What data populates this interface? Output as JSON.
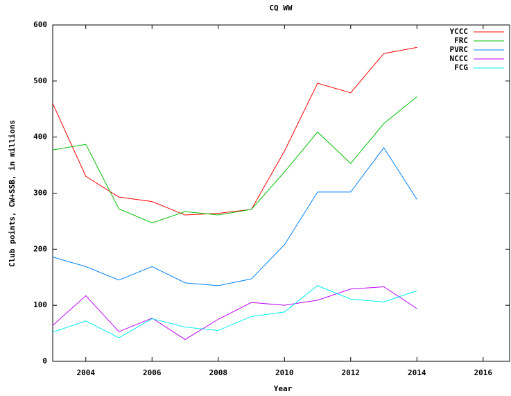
{
  "chart_data": {
    "type": "line",
    "title": "CQ WW",
    "x_label": "Year",
    "y_label": "Club points, CW+SSB, in millions",
    "x": [
      2003,
      2004,
      2005,
      2006,
      2007,
      2008,
      2009,
      2010,
      2011,
      2012,
      2013,
      2014
    ],
    "series": [
      {
        "name": "YCCC",
        "color": "#ff0000",
        "values": [
          460,
          330,
          293,
          285,
          261,
          264,
          271,
          375,
          496,
          479,
          549,
          560
        ]
      },
      {
        "name": "FRC",
        "color": "#00c000",
        "values": [
          377,
          387,
          272,
          247,
          267,
          261,
          271,
          338,
          409,
          353,
          424,
          472
        ]
      },
      {
        "name": "PVRC",
        "color": "#0080ff",
        "values": [
          186,
          169,
          145,
          169,
          140,
          135,
          147,
          208,
          302,
          302,
          381,
          289
        ]
      },
      {
        "name": "NCCC",
        "color": "#c000ff",
        "values": [
          64,
          117,
          53,
          77,
          39,
          75,
          105,
          100,
          109,
          129,
          133,
          94
        ]
      },
      {
        "name": "FCG",
        "color": "#00eeee",
        "values": [
          52,
          72,
          42,
          76,
          61,
          55,
          80,
          88,
          135,
          111,
          106,
          126
        ]
      }
    ],
    "xlim": [
      2003,
      2016.8
    ],
    "xticks": [
      2004,
      2006,
      2008,
      2010,
      2012,
      2014,
      2016
    ],
    "ylim": [
      0,
      600
    ],
    "yticks": [
      0,
      100,
      200,
      300,
      400,
      500,
      600
    ],
    "legend": "top-right"
  }
}
